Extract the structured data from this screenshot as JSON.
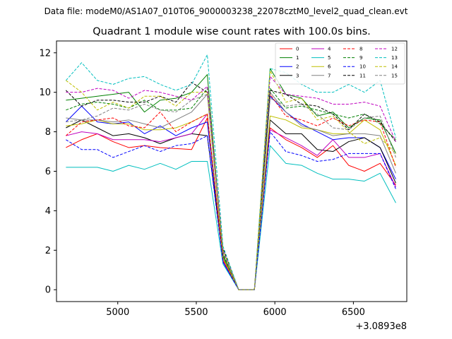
{
  "chart_data": {
    "type": "line",
    "suptitle": "Data file: modeM0/AS1A07_010T06_9000003238_22078cztM0_level2_quad_clean.evt",
    "title": "Quadrant 1 module wise count rates with 100.0s bins.",
    "xlabel": "",
    "ylabel": "",
    "offset_text": "+3.0893e8",
    "xlim": [
      4610,
      6840
    ],
    "ylim": [
      -0.6,
      12.6
    ],
    "x_ticks": [
      5000,
      5500,
      6000,
      6500
    ],
    "y_ticks": [
      0,
      2,
      4,
      6,
      8,
      10,
      12
    ],
    "x": [
      4670,
      4770,
      4870,
      4970,
      5070,
      5170,
      5270,
      5370,
      5470,
      5570,
      5670,
      5770,
      5870,
      5970,
      6070,
      6170,
      6270,
      6370,
      6470,
      6570,
      6670,
      6770
    ],
    "legend_position": "top-right",
    "series": [
      {
        "name": "0",
        "color": "#ff0000",
        "dash": "solid",
        "values": [
          7.2,
          7.6,
          7.9,
          7.5,
          7.2,
          7.3,
          7.2,
          7.15,
          7.1,
          8.7,
          1.4,
          0.0,
          0.0,
          8.2,
          7.6,
          7.2,
          6.7,
          7.3,
          6.3,
          6.0,
          6.4,
          5.3
        ]
      },
      {
        "name": "1",
        "color": "#008000",
        "dash": "solid",
        "values": [
          9.6,
          9.7,
          9.8,
          9.9,
          10.0,
          9.0,
          9.6,
          9.7,
          10.0,
          10.9,
          1.7,
          0.0,
          0.0,
          11.2,
          9.9,
          9.7,
          8.8,
          9.0,
          8.2,
          8.7,
          8.6,
          6.9
        ]
      },
      {
        "name": "2",
        "color": "#0000ff",
        "dash": "solid",
        "values": [
          8.5,
          9.3,
          8.5,
          8.4,
          8.5,
          7.9,
          8.3,
          7.8,
          8.2,
          8.5,
          1.4,
          0.0,
          0.0,
          9.8,
          9.0,
          8.4,
          8.0,
          7.6,
          7.7,
          7.7,
          7.2,
          5.6
        ]
      },
      {
        "name": "3",
        "color": "#000000",
        "dash": "solid",
        "values": [
          8.2,
          8.6,
          8.2,
          7.8,
          7.9,
          7.7,
          7.4,
          7.7,
          7.9,
          7.8,
          1.6,
          0.0,
          0.0,
          8.6,
          7.9,
          7.9,
          7.1,
          7.0,
          7.5,
          7.7,
          7.2,
          5.4
        ]
      },
      {
        "name": "4",
        "color": "#bf00bf",
        "dash": "solid",
        "values": [
          7.8,
          8.0,
          7.9,
          7.6,
          7.6,
          7.6,
          7.5,
          7.7,
          7.9,
          8.9,
          1.5,
          0.0,
          0.0,
          8.1,
          7.7,
          7.3,
          6.8,
          7.6,
          6.7,
          6.7,
          6.9,
          5.2
        ]
      },
      {
        "name": "5",
        "color": "#00bfbf",
        "dash": "solid",
        "values": [
          6.2,
          6.2,
          6.2,
          6.0,
          6.3,
          6.1,
          6.4,
          6.1,
          6.5,
          6.5,
          1.3,
          0.0,
          0.0,
          7.3,
          6.4,
          6.3,
          5.9,
          5.6,
          5.6,
          5.5,
          5.9,
          4.4
        ]
      },
      {
        "name": "6",
        "color": "#bfbf00",
        "dash": "solid",
        "values": [
          8.3,
          8.4,
          8.6,
          8.4,
          8.4,
          8.1,
          8.1,
          8.2,
          8.5,
          8.9,
          1.6,
          0.0,
          0.0,
          8.8,
          8.6,
          8.2,
          8.1,
          7.9,
          7.9,
          8.6,
          8.1,
          6.3
        ]
      },
      {
        "name": "7",
        "color": "#808080",
        "dash": "solid",
        "values": [
          8.7,
          8.6,
          8.6,
          8.5,
          8.6,
          8.4,
          8.2,
          8.6,
          9.0,
          9.9,
          1.8,
          0.0,
          0.0,
          10.0,
          9.0,
          8.3,
          8.1,
          7.8,
          7.9,
          7.9,
          7.8,
          5.9
        ]
      },
      {
        "name": "8",
        "color": "#ff0000",
        "dash": "dashed",
        "values": [
          7.8,
          8.5,
          8.6,
          8.7,
          8.3,
          8.2,
          9.0,
          8.0,
          8.5,
          8.9,
          1.5,
          0.0,
          0.0,
          9.9,
          8.8,
          8.6,
          8.3,
          8.7,
          8.3,
          8.6,
          8.5,
          6.2
        ]
      },
      {
        "name": "9",
        "color": "#008000",
        "dash": "dashed",
        "values": [
          9.1,
          9.4,
          9.5,
          9.4,
          9.2,
          9.6,
          9.1,
          9.1,
          9.2,
          10.2,
          1.8,
          0.0,
          0.0,
          10.2,
          9.2,
          9.3,
          9.1,
          8.9,
          8.7,
          8.9,
          8.4,
          7.6
        ]
      },
      {
        "name": "10",
        "color": "#0000ff",
        "dash": "dashed",
        "values": [
          7.6,
          7.1,
          7.1,
          6.7,
          7.0,
          7.3,
          7.0,
          7.3,
          7.4,
          7.8,
          1.4,
          0.0,
          0.0,
          8.0,
          7.0,
          6.8,
          6.5,
          6.6,
          6.9,
          6.9,
          6.9,
          5.1
        ]
      },
      {
        "name": "11",
        "color": "#000000",
        "dash": "dashed",
        "values": [
          10.1,
          9.3,
          9.6,
          9.6,
          9.5,
          9.5,
          9.8,
          9.5,
          10.5,
          10.0,
          2.1,
          0.0,
          0.0,
          10.1,
          9.9,
          9.4,
          9.3,
          8.9,
          8.1,
          8.9,
          8.5,
          7.5
        ]
      },
      {
        "name": "12",
        "color": "#bf00bf",
        "dash": "dashed",
        "values": [
          10.0,
          10.0,
          10.2,
          10.1,
          9.7,
          10.1,
          10.0,
          9.8,
          9.6,
          10.3,
          2.0,
          0.0,
          0.0,
          10.8,
          9.9,
          9.8,
          9.7,
          9.4,
          9.4,
          9.5,
          9.3,
          7.5
        ]
      },
      {
        "name": "13",
        "color": "#00bfbf",
        "dash": "dashed",
        "values": [
          10.6,
          11.5,
          10.6,
          10.4,
          10.7,
          10.8,
          10.4,
          10.1,
          10.4,
          11.9,
          2.2,
          0.0,
          0.0,
          11.2,
          11.0,
          10.4,
          10.0,
          10.0,
          10.4,
          10.0,
          10.6,
          7.7
        ]
      },
      {
        "name": "14",
        "color": "#bfbf00",
        "dash": "dashed",
        "values": [
          10.6,
          10.0,
          9.1,
          9.5,
          9.2,
          9.8,
          9.8,
          9.3,
          10.0,
          10.0,
          2.0,
          0.0,
          0.0,
          11.1,
          9.5,
          9.7,
          8.6,
          8.8,
          8.0,
          7.4,
          7.7,
          6.9
        ]
      },
      {
        "name": "15",
        "color": "#808080",
        "dash": "dashed",
        "values": [
          8.5,
          8.6,
          8.8,
          9.2,
          9.1,
          9.4,
          9.1,
          9.0,
          9.6,
          9.9,
          1.9,
          0.0,
          0.0,
          9.7,
          9.3,
          9.4,
          8.9,
          8.2,
          8.1,
          8.7,
          8.8,
          6.7
        ]
      }
    ]
  }
}
